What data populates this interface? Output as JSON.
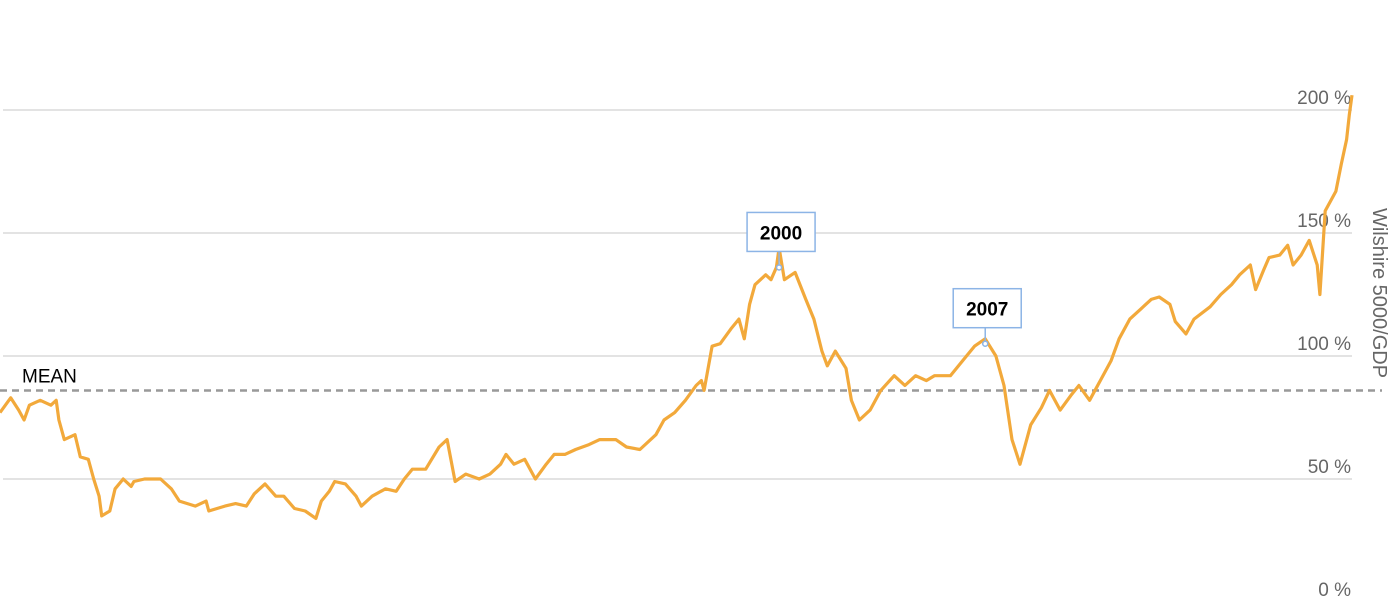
{
  "chart_data": {
    "type": "line",
    "title": "",
    "xlabel": "",
    "ylabel": "Wilshire 5000/GDP",
    "xlim": [
      1971,
      2021.5
    ],
    "ylim": [
      0,
      200
    ],
    "y_ticks": [
      0,
      50,
      100,
      150,
      200
    ],
    "y_tick_labels": [
      "0 %",
      "50 %",
      "100 %",
      "150 %",
      "200 %"
    ],
    "y_axis_position": "right",
    "grid": "horizontal",
    "line_color": "#f2a93b",
    "mean": {
      "label": "MEAN",
      "value": 86,
      "color": "#999999",
      "style": "dashed"
    },
    "annotations": [
      {
        "label": "2000",
        "x": 2000.1,
        "y": 136,
        "border_color": "#8cb4e6"
      },
      {
        "label": "2007",
        "x": 2007.8,
        "y": 105,
        "border_color": "#8cb4e6"
      }
    ],
    "series": [
      {
        "x": [
          1971.0,
          1971.4,
          1971.7,
          1971.9,
          1972.1,
          1972.5,
          1972.9,
          1973.1,
          1973.2,
          1973.4,
          1973.8,
          1974.0,
          1974.3,
          1974.5,
          1974.7,
          1974.8,
          1975.1,
          1975.3,
          1975.6,
          1975.9,
          1976.0,
          1976.4,
          1977.0,
          1977.4,
          1977.7,
          1978.3,
          1978.7,
          1978.8,
          1979.4,
          1979.8,
          1980.2,
          1980.5,
          1980.9,
          1981.3,
          1981.6,
          1982.0,
          1982.4,
          1982.8,
          1983.0,
          1983.3,
          1983.5,
          1983.9,
          1984.3,
          1984.5,
          1984.9,
          1985.4,
          1985.8,
          1986.1,
          1986.4,
          1986.9,
          1987.4,
          1987.7,
          1988.0,
          1988.4,
          1988.9,
          1989.3,
          1989.7,
          1989.9,
          1990.2,
          1990.6,
          1991.0,
          1991.4,
          1991.7,
          1992.1,
          1992.5,
          1993.0,
          1993.4,
          1994.0,
          1994.4,
          1994.9,
          1995.5,
          1995.8,
          1996.2,
          1996.6,
          1997.0,
          1997.2,
          1997.3,
          1997.6,
          1997.9,
          1998.3,
          1998.6,
          1998.8,
          1999.0,
          1999.2,
          1999.6,
          1999.8,
          2000.0,
          2000.1,
          2000.3,
          2000.7,
          2001.1,
          2001.4,
          2001.7,
          2001.9,
          2002.2,
          2002.6,
          2002.8,
          2003.1,
          2003.5,
          2003.9,
          2004.4,
          2004.8,
          2005.2,
          2005.6,
          2005.9,
          2006.5,
          2007.1,
          2007.4,
          2007.8,
          2008.2,
          2008.5,
          2008.8,
          2009.1,
          2009.5,
          2009.9,
          2010.2,
          2010.6,
          2011.0,
          2011.3,
          2011.7,
          2012.1,
          2012.5,
          2012.8,
          2013.2,
          2013.6,
          2014.0,
          2014.3,
          2014.7,
          2014.9,
          2015.3,
          2015.6,
          2016.2,
          2016.6,
          2017.0,
          2017.3,
          2017.7,
          2017.9,
          2018.2,
          2018.4,
          2018.8,
          2019.1,
          2019.3,
          2019.6,
          2019.9,
          2020.2,
          2020.3,
          2020.5,
          2020.7,
          2020.9,
          2021.1,
          2021.3,
          2021.4,
          2021.5
        ],
        "y": [
          77,
          83,
          78,
          74,
          80,
          82,
          80,
          82,
          74,
          66,
          68,
          59,
          58,
          50,
          43,
          35,
          37,
          46,
          50,
          47,
          49,
          50,
          50,
          46,
          41,
          39,
          41,
          37,
          39,
          40,
          39,
          44,
          48,
          43,
          43,
          38,
          37,
          34,
          41,
          45,
          49,
          48,
          43,
          39,
          43,
          46,
          45,
          50,
          54,
          54,
          63,
          66,
          49,
          52,
          50,
          52,
          56,
          60,
          56,
          58,
          50,
          56,
          60,
          60,
          62,
          64,
          66,
          66,
          63,
          62,
          68,
          74,
          77,
          82,
          88,
          90,
          86,
          104,
          105,
          111,
          115,
          107,
          121,
          129,
          133,
          131,
          136,
          144,
          131,
          134,
          123,
          115,
          102,
          96,
          102,
          95,
          82,
          74,
          78,
          86,
          92,
          88,
          92,
          90,
          92,
          92,
          100,
          104,
          107,
          100,
          88,
          66,
          56,
          72,
          79,
          86,
          78,
          84,
          88,
          82,
          90,
          98,
          107,
          115,
          119,
          123,
          124,
          121,
          114,
          109,
          115,
          120,
          125,
          129,
          133,
          137,
          127,
          135,
          140,
          141,
          145,
          137,
          141,
          147,
          137,
          125,
          159,
          163,
          167,
          178,
          188,
          198,
          206
        ]
      }
    ]
  }
}
